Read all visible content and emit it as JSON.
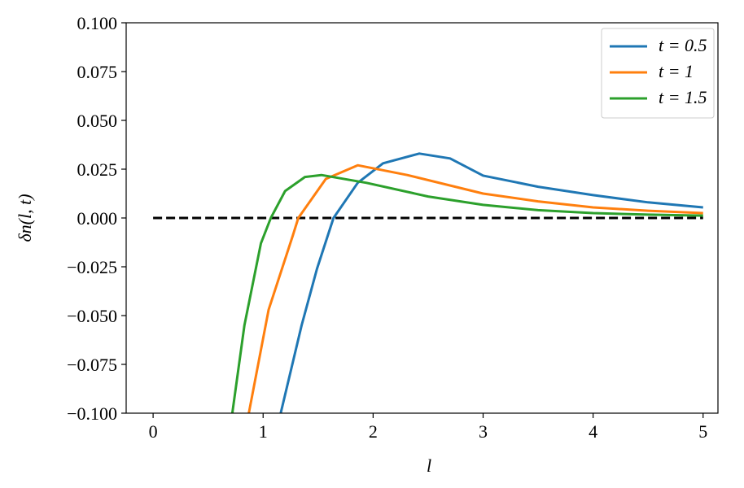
{
  "chart_data": {
    "type": "line",
    "xlabel": "l",
    "ylabel": "δn(l, t)",
    "xlim": [
      -0.245,
      5.135
    ],
    "ylim": [
      -0.1,
      0.1
    ],
    "xticks": [
      0,
      1,
      2,
      3,
      4,
      5
    ],
    "yticks": [
      {
        "value": 0.1,
        "label": "0.100"
      },
      0.075,
      {
        "value": 0.05,
        "label": "0.050"
      },
      0.025,
      {
        "value": 0,
        "label": "0.000"
      },
      {
        "value": -0.025,
        "label": "−0.025"
      },
      {
        "value": -0.05,
        "label": "−0.050"
      },
      {
        "value": -0.075,
        "label": "−0.075"
      },
      {
        "value": -0.1,
        "label": "−0.100"
      }
    ],
    "legend": "upper right",
    "series": [
      {
        "name": "t = 0.5",
        "color": "#1f77b4",
        "x": [
          1.16,
          1.35,
          1.49,
          1.64,
          1.86,
          2.09,
          2.42,
          2.7,
          3.0,
          3.5,
          4.0,
          4.5,
          5.0
        ],
        "values": [
          -0.1,
          -0.055,
          -0.026,
          0,
          0.018,
          0.028,
          0.033,
          0.0305,
          0.0217,
          0.016,
          0.0117,
          0.008,
          0.0054
        ]
      },
      {
        "name": "t = 1",
        "color": "#ff7f0e",
        "x": [
          0.87,
          1.05,
          1.27,
          1.32,
          1.57,
          1.86,
          2.31,
          3.0,
          3.5,
          4.0,
          4.5,
          5.0
        ],
        "values": [
          -0.1,
          -0.047,
          -0.009,
          0,
          0.02,
          0.027,
          0.022,
          0.0125,
          0.0085,
          0.0054,
          0.0037,
          0.0025
        ]
      },
      {
        "name": "t = 1.5",
        "color": "#2ca02c",
        "x": [
          0.72,
          0.83,
          0.98,
          1.07,
          1.2,
          1.38,
          1.53,
          1.94,
          2.5,
          3.0,
          3.5,
          4.0,
          4.5,
          5.0
        ],
        "values": [
          -0.1,
          -0.055,
          -0.013,
          0,
          0.0138,
          0.021,
          0.022,
          0.018,
          0.011,
          0.0067,
          0.004,
          0.0025,
          0.0017,
          0.0012
        ]
      }
    ],
    "hline": {
      "y": 0,
      "xmin": 0,
      "xmax": 5,
      "color": "#000000",
      "style": "dashed"
    }
  }
}
